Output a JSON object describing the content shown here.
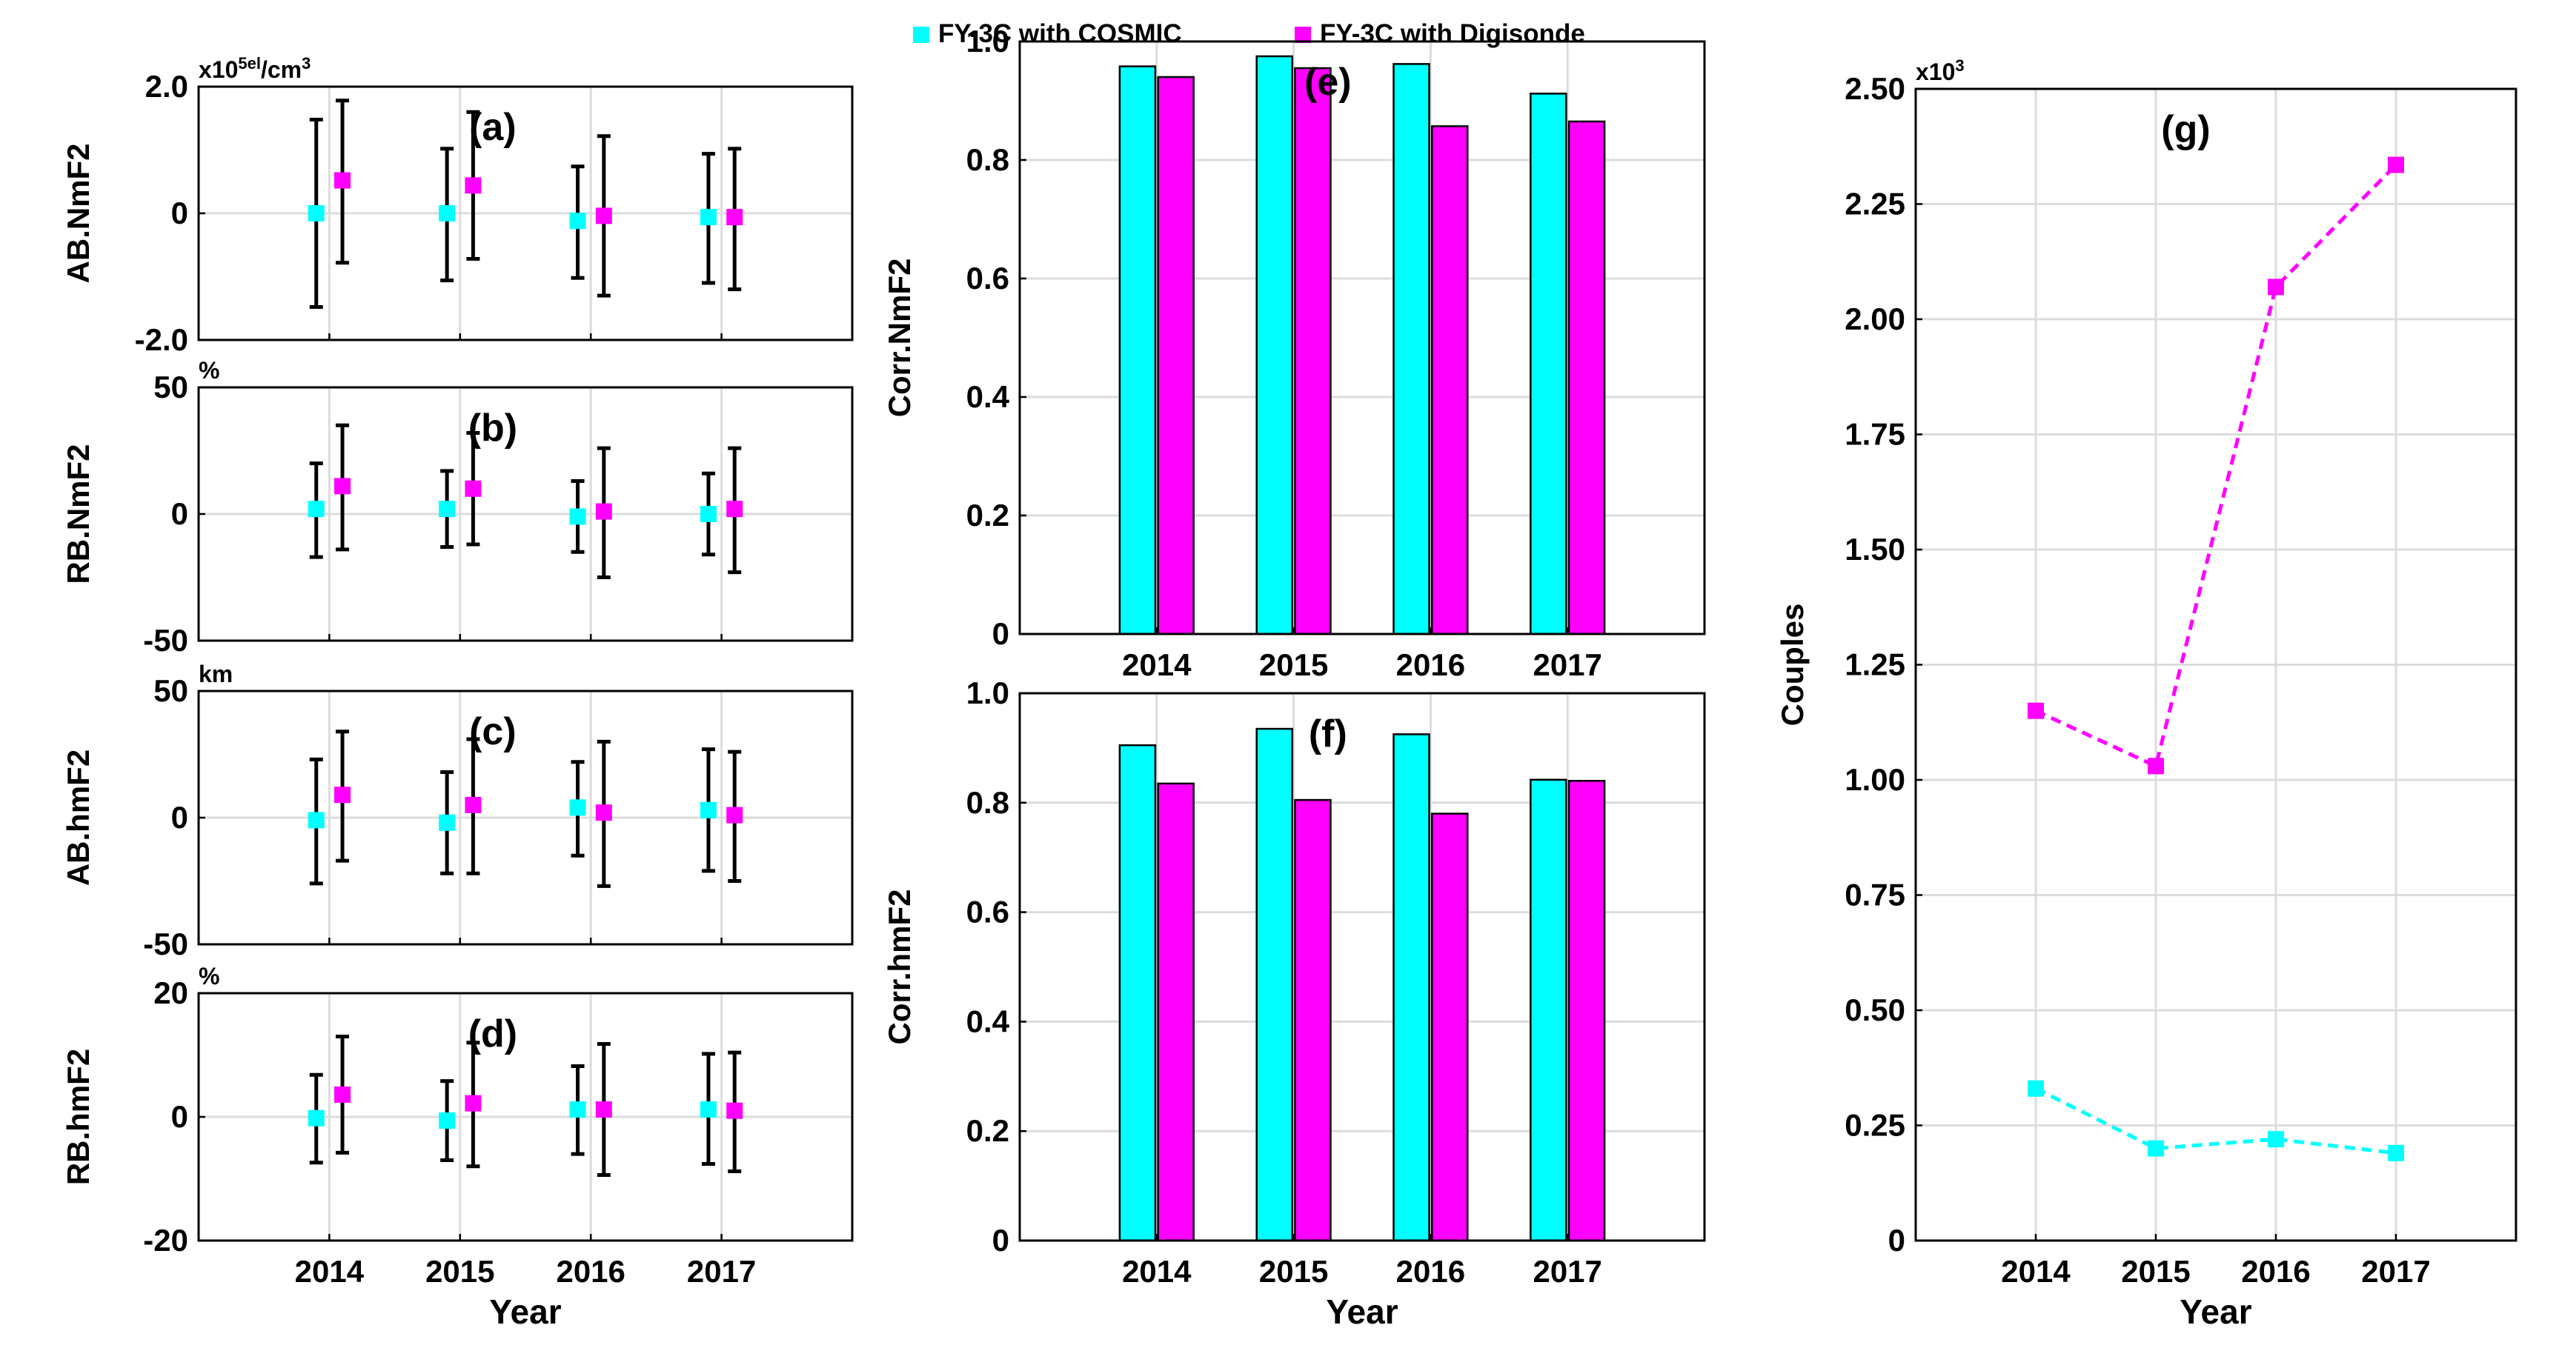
{
  "legend": {
    "items": [
      {
        "label": "FY-3C with COSMIC",
        "color": "#00ffff"
      },
      {
        "label": "FY-3C with Digisonde",
        "color": "#ff00ff"
      }
    ]
  },
  "chart_data": [
    {
      "id": "a",
      "type": "scatter",
      "panel_label": "(a)",
      "ylabel": "AB.NmF2",
      "unit_label": "x10^5el/cm^3",
      "xlabel": "",
      "categories": [
        "2014",
        "2015",
        "2016",
        "2017"
      ],
      "show_xticklabels": false,
      "ylim": [
        -2,
        2
      ],
      "yticks": [
        -2,
        0,
        2
      ],
      "yticklabels": [
        "-2.0",
        "0",
        "2.0"
      ],
      "series": [
        {
          "name": "FY-3C with COSMIC",
          "color": "#00ffff",
          "values": [
            0,
            0,
            -0.12,
            -0.06
          ],
          "err_low": [
            -1.48,
            -1.06,
            -1.02,
            -1.1
          ],
          "err_high": [
            1.48,
            1.02,
            0.74,
            0.94
          ]
        },
        {
          "name": "FY-3C with Digisonde",
          "color": "#ff00ff",
          "values": [
            0.52,
            0.44,
            -0.04,
            -0.06
          ],
          "err_low": [
            -0.78,
            -0.72,
            -1.3,
            -1.2
          ],
          "err_high": [
            1.78,
            1.6,
            1.22,
            1.02
          ]
        }
      ]
    },
    {
      "id": "b",
      "type": "scatter",
      "panel_label": "(b)",
      "ylabel": "RB.NmF2",
      "unit_label": "%",
      "xlabel": "",
      "categories": [
        "2014",
        "2015",
        "2016",
        "2017"
      ],
      "show_xticklabels": false,
      "ylim": [
        -50,
        50
      ],
      "yticks": [
        -50,
        0,
        50
      ],
      "yticklabels": [
        "-50",
        "0",
        "50"
      ],
      "series": [
        {
          "name": "FY-3C with COSMIC",
          "color": "#00ffff",
          "values": [
            2,
            2,
            -1,
            0
          ],
          "err_low": [
            -17,
            -13,
            -15,
            -16
          ],
          "err_high": [
            20,
            17,
            13,
            16
          ]
        },
        {
          "name": "FY-3C with Digisonde",
          "color": "#ff00ff",
          "values": [
            11,
            10,
            1,
            2
          ],
          "err_low": [
            -14,
            -12,
            -25,
            -23
          ],
          "err_high": [
            35,
            32,
            26,
            26
          ]
        }
      ]
    },
    {
      "id": "c",
      "type": "scatter",
      "panel_label": "(c)",
      "ylabel": "AB.hmF2",
      "unit_label": "km",
      "xlabel": "",
      "categories": [
        "2014",
        "2015",
        "2016",
        "2017"
      ],
      "show_xticklabels": false,
      "ylim": [
        -50,
        50
      ],
      "yticks": [
        -50,
        0,
        50
      ],
      "yticklabels": [
        "-50",
        "0",
        "50"
      ],
      "series": [
        {
          "name": "FY-3C with COSMIC",
          "color": "#00ffff",
          "values": [
            -1,
            -2,
            4,
            3
          ],
          "err_low": [
            -26,
            -22,
            -15,
            -21
          ],
          "err_high": [
            23,
            18,
            22,
            27
          ]
        },
        {
          "name": "FY-3C with Digisonde",
          "color": "#ff00ff",
          "values": [
            9,
            5,
            2,
            1
          ],
          "err_low": [
            -17,
            -22,
            -27,
            -25
          ],
          "err_high": [
            34,
            31,
            30,
            26
          ]
        }
      ]
    },
    {
      "id": "d",
      "type": "scatter",
      "panel_label": "(d)",
      "ylabel": "RB.hmF2",
      "unit_label": "%",
      "xlabel": "Year",
      "categories": [
        "2014",
        "2015",
        "2016",
        "2017"
      ],
      "show_xticklabels": true,
      "ylim": [
        -20,
        20
      ],
      "yticks": [
        -20,
        0,
        20
      ],
      "yticklabels": [
        "-20",
        "0",
        "20"
      ],
      "series": [
        {
          "name": "FY-3C with COSMIC",
          "color": "#00ffff",
          "values": [
            -0.2,
            -0.6,
            1.2,
            1.2
          ],
          "err_low": [
            -7.4,
            -7,
            -6,
            -7.6
          ],
          "err_high": [
            6.8,
            5.8,
            8.2,
            10.2
          ]
        },
        {
          "name": "FY-3C with Digisonde",
          "color": "#ff00ff",
          "values": [
            3.6,
            2.2,
            1.2,
            1.0
          ],
          "err_low": [
            -5.8,
            -8,
            -9.4,
            -8.8
          ],
          "err_high": [
            13,
            12,
            11.8,
            10.4
          ]
        }
      ]
    },
    {
      "id": "e",
      "type": "bar",
      "panel_label": "(e)",
      "ylabel": "Corr.NmF2",
      "xlabel": "",
      "categories": [
        "2014",
        "2015",
        "2016",
        "2017"
      ],
      "show_xticklabels": true,
      "ylim": [
        0,
        1
      ],
      "yticks": [
        0,
        0.2,
        0.4,
        0.6,
        0.8,
        1.0
      ],
      "yticklabels": [
        "0",
        "0.2",
        "0.4",
        "0.6",
        "0.8",
        "1.0"
      ],
      "series": [
        {
          "name": "FY-3C with COSMIC",
          "color": "#00ffff",
          "values": [
            0.958,
            0.975,
            0.962,
            0.912
          ]
        },
        {
          "name": "FY-3C with Digisonde",
          "color": "#ff00ff",
          "values": [
            0.94,
            0.955,
            0.857,
            0.865
          ]
        }
      ]
    },
    {
      "id": "f",
      "type": "bar",
      "panel_label": "(f)",
      "ylabel": "Corr.hmF2",
      "xlabel": "Year",
      "categories": [
        "2014",
        "2015",
        "2016",
        "2017"
      ],
      "show_xticklabels": true,
      "ylim": [
        0,
        1
      ],
      "yticks": [
        0,
        0.2,
        0.4,
        0.6,
        0.8,
        1.0
      ],
      "yticklabels": [
        "0",
        "0.2",
        "0.4",
        "0.6",
        "0.8",
        "1.0"
      ],
      "series": [
        {
          "name": "FY-3C with COSMIC",
          "color": "#00ffff",
          "values": [
            0.905,
            0.935,
            0.925,
            0.842
          ]
        },
        {
          "name": "FY-3C with Digisonde",
          "color": "#ff00ff",
          "values": [
            0.835,
            0.805,
            0.78,
            0.84
          ]
        }
      ]
    },
    {
      "id": "g",
      "type": "line",
      "panel_label": "(g)",
      "ylabel": "Couples",
      "unit_label": "x10^3",
      "xlabel": "Year",
      "categories": [
        "2014",
        "2015",
        "2016",
        "2017"
      ],
      "show_xticklabels": true,
      "ylim": [
        0,
        2.5
      ],
      "yticks": [
        0,
        0.25,
        0.5,
        0.75,
        1.0,
        1.25,
        1.5,
        1.75,
        2.0,
        2.25,
        2.5
      ],
      "yticklabels": [
        "0",
        "0.25",
        "0.50",
        "0.75",
        "1.00",
        "1.25",
        "1.50",
        "1.75",
        "2.00",
        "2.25",
        "2.50"
      ],
      "series": [
        {
          "name": "FY-3C with COSMIC",
          "color": "#00ffff",
          "values": [
            0.33,
            0.2,
            0.22,
            0.19
          ]
        },
        {
          "name": "FY-3C with Digisonde",
          "color": "#ff00ff",
          "values": [
            1.15,
            1.03,
            2.07,
            2.335
          ]
        }
      ]
    }
  ]
}
